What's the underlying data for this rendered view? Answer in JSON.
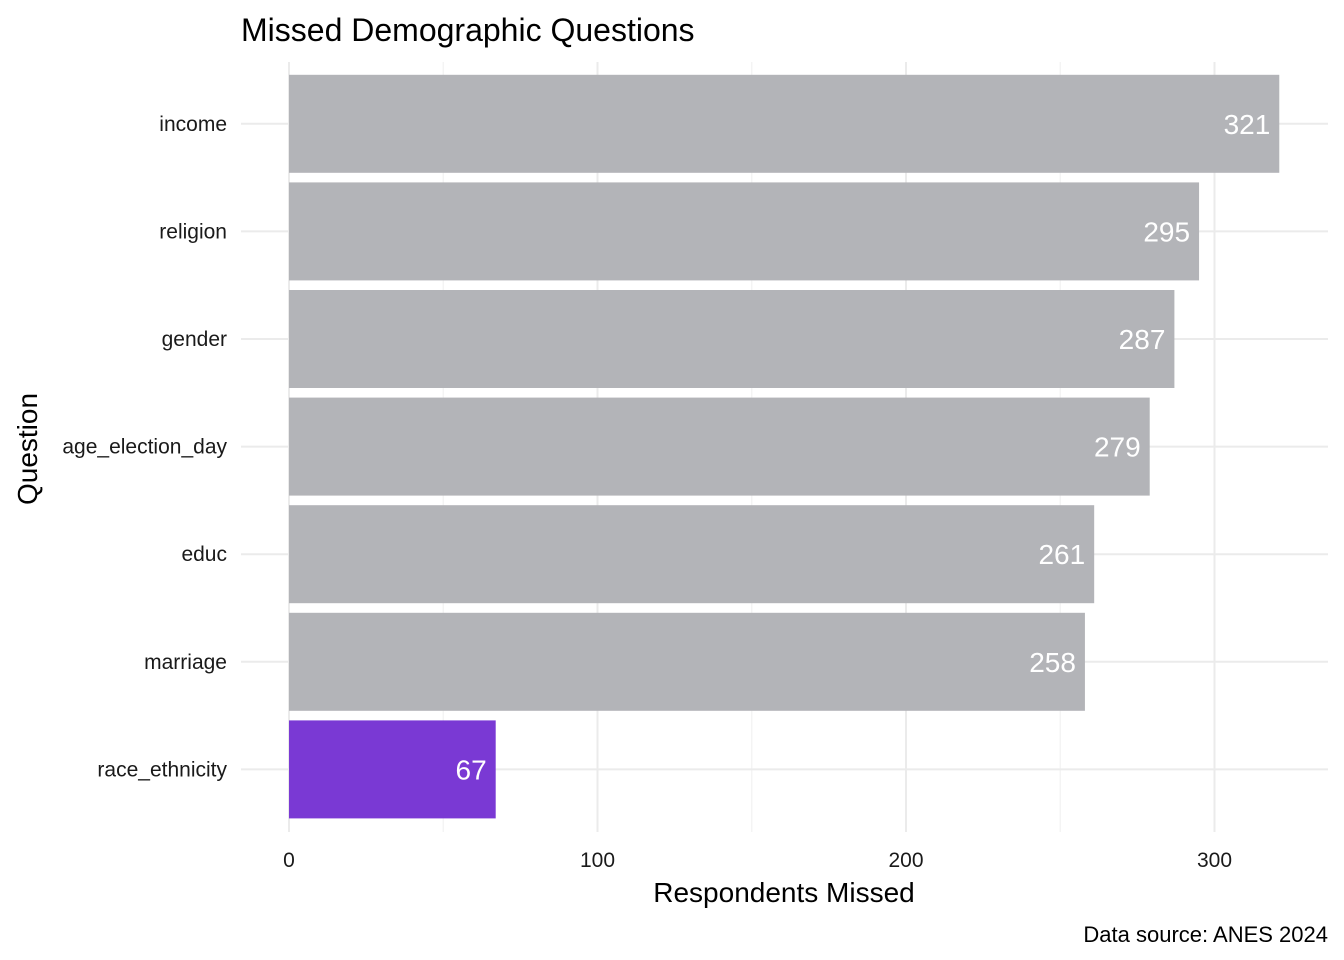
{
  "chart_data": {
    "type": "bar",
    "orientation": "horizontal",
    "title": "Missed Demographic Questions",
    "xlabel": "Respondents Missed",
    "ylabel": "Question",
    "caption": "Data source: ANES 2024",
    "categories": [
      "income",
      "religion",
      "gender",
      "age_election_day",
      "educ",
      "marriage",
      "race_ethnicity"
    ],
    "values": [
      321,
      295,
      287,
      279,
      261,
      258,
      67
    ],
    "data_labels": [
      "321",
      "295",
      "287",
      "279",
      "261",
      "258",
      "67"
    ],
    "highlight_category": "race_ethnicity",
    "xlim": [
      0,
      335
    ],
    "x_ticks": [
      0,
      100,
      200,
      300
    ],
    "x_tick_labels": [
      "0",
      "100",
      "200",
      "300"
    ],
    "x_minor_ticks": [
      50,
      150,
      250
    ],
    "grid": true,
    "legend": "none",
    "colors": {
      "bar_default": "#b3b4b8",
      "bar_highlight": "#7a39d4",
      "data_label": "#ffffff",
      "gridline": "#ebebeb"
    }
  }
}
